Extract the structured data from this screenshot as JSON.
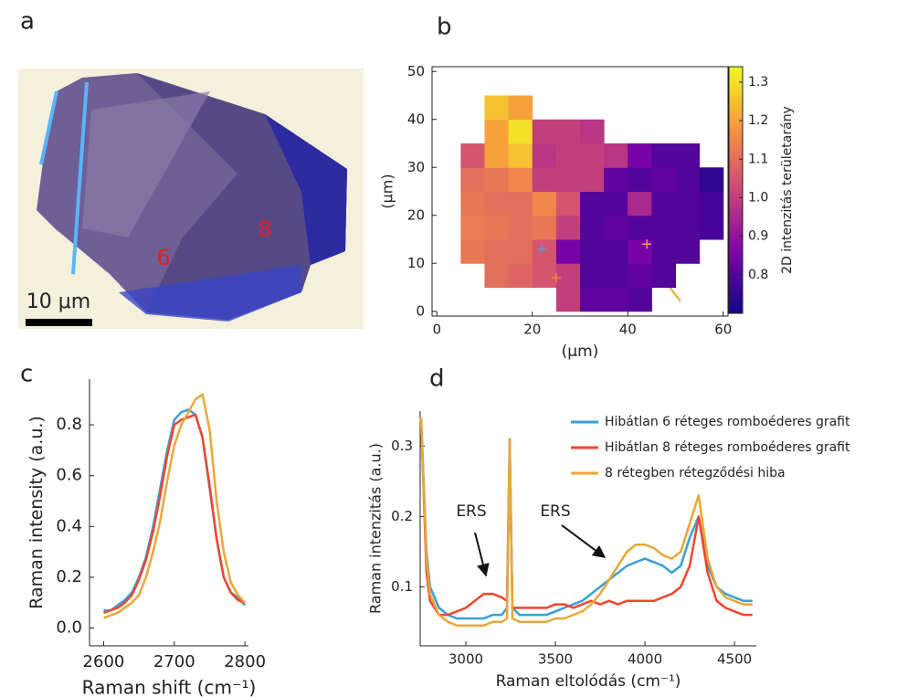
{
  "image_panel": {
    "panel_label": "a",
    "annotations": [
      "6",
      "8"
    ],
    "scale_bar": "10 μm"
  },
  "chart_data": [
    {
      "type": "heatmap",
      "panel_label": "b",
      "xlabel": "(μm)",
      "ylabel": "(μm)",
      "colorbar_label": "2D intenzitás területarány",
      "colormap": "plasma",
      "xlim": [
        -1,
        61
      ],
      "ylim": [
        -1,
        51
      ],
      "xticks": [
        0,
        20,
        40,
        60
      ],
      "yticks": [
        0,
        10,
        20,
        30,
        40,
        50
      ],
      "clim": [
        0.7,
        1.34
      ],
      "cticks": [
        0.8,
        0.9,
        {
          "value": 1.0,
          "label": "1.0"
        },
        1.1,
        1.2,
        1.3
      ],
      "x_edges": [
        0,
        5,
        10,
        15,
        20,
        25,
        30,
        35,
        40,
        45,
        50,
        55,
        60
      ],
      "y_edges": [
        0,
        5,
        10,
        15,
        20,
        25,
        30,
        35,
        40,
        45,
        50
      ],
      "z": [
        [
          null,
          null,
          null,
          null,
          null,
          1.0,
          0.82,
          0.82,
          0.8,
          null,
          null,
          null
        ],
        [
          null,
          null,
          1.1,
          1.08,
          1.05,
          1.0,
          0.8,
          0.8,
          0.82,
          0.8,
          null,
          null
        ],
        [
          null,
          1.12,
          1.1,
          1.1,
          1.05,
          0.85,
          0.8,
          0.8,
          0.85,
          0.8,
          0.8,
          null
        ],
        [
          null,
          1.13,
          1.12,
          1.1,
          1.12,
          1.0,
          0.8,
          0.82,
          0.8,
          0.8,
          0.8,
          0.78
        ],
        [
          null,
          1.12,
          1.1,
          1.1,
          1.15,
          1.05,
          0.8,
          0.8,
          0.95,
          0.8,
          0.8,
          0.78
        ],
        [
          null,
          1.1,
          1.12,
          1.15,
          1.0,
          1.0,
          1.0,
          0.82,
          0.8,
          0.82,
          0.8,
          0.75
        ],
        [
          null,
          1.05,
          1.2,
          1.25,
          0.98,
          1.0,
          1.0,
          0.98,
          0.85,
          0.8,
          0.8,
          null
        ],
        [
          null,
          null,
          1.2,
          1.3,
          1.0,
          1.0,
          0.98,
          null,
          null,
          null,
          null,
          null
        ],
        [
          null,
          null,
          1.25,
          1.2,
          null,
          null,
          null,
          null,
          null,
          null,
          null,
          null
        ],
        [
          null,
          null,
          null,
          null,
          null,
          null,
          null,
          null,
          null,
          null,
          null,
          null
        ]
      ],
      "markers": [
        {
          "x": 22,
          "y": 13,
          "color": "#6a8fd0"
        },
        {
          "x": 25,
          "y": 7,
          "color": "#f08a3a"
        },
        {
          "x": 44,
          "y": 14,
          "color": "#f0a050"
        }
      ]
    },
    {
      "type": "line",
      "panel_label": "c",
      "xlabel": "Raman shift (cm⁻¹)",
      "ylabel": "Raman intensity (a.u.)",
      "xlim": [
        2580,
        2805
      ],
      "ylim": [
        -0.07,
        0.98
      ],
      "xticks": [
        2600,
        2700,
        2800
      ],
      "yticks": [
        {
          "value": 0,
          "label": "0.0"
        },
        0.2,
        0.4,
        0.6,
        0.8
      ],
      "x": [
        2600,
        2610,
        2620,
        2630,
        2640,
        2650,
        2660,
        2670,
        2680,
        2690,
        2700,
        2710,
        2720,
        2730,
        2740,
        2750,
        2760,
        2770,
        2780,
        2790,
        2800
      ],
      "series": [
        {
          "color": "#3a9fd6",
          "values": [
            0.07,
            0.07,
            0.09,
            0.11,
            0.14,
            0.2,
            0.28,
            0.4,
            0.55,
            0.7,
            0.82,
            0.85,
            0.86,
            0.84,
            0.75,
            0.55,
            0.35,
            0.2,
            0.14,
            0.12,
            0.09
          ]
        },
        {
          "color": "#f0462d",
          "values": [
            0.06,
            0.07,
            0.08,
            0.1,
            0.13,
            0.19,
            0.27,
            0.38,
            0.52,
            0.68,
            0.8,
            0.82,
            0.83,
            0.84,
            0.75,
            0.56,
            0.35,
            0.2,
            0.14,
            0.11,
            0.1
          ]
        },
        {
          "color": "#e8a838",
          "values": [
            0.04,
            0.05,
            0.06,
            0.08,
            0.1,
            0.13,
            0.2,
            0.3,
            0.42,
            0.58,
            0.72,
            0.8,
            0.85,
            0.9,
            0.92,
            0.78,
            0.5,
            0.3,
            0.18,
            0.13,
            0.1
          ]
        }
      ]
    },
    {
      "type": "line",
      "panel_label": "d",
      "xlabel": "Raman eltolódás (cm⁻¹)",
      "ylabel": "Raman intenzitás (a.u.)",
      "xlim": [
        2745,
        4622
      ],
      "ylim": [
        0.016,
        0.35
      ],
      "xticks": [
        3000,
        3500,
        4000,
        4500
      ],
      "yticks": [
        0.1,
        0.2,
        0.3
      ],
      "annotations": [
        "ERS",
        "ERS"
      ],
      "legend": "upper right",
      "x": [
        2750,
        2780,
        2800,
        2850,
        2900,
        2950,
        3000,
        3050,
        3100,
        3150,
        3200,
        3230,
        3245,
        3260,
        3300,
        3350,
        3400,
        3450,
        3500,
        3550,
        3600,
        3650,
        3700,
        3750,
        3800,
        3850,
        3900,
        3950,
        4000,
        4050,
        4100,
        4150,
        4200,
        4250,
        4300,
        4350,
        4400,
        4450,
        4500,
        4550,
        4600
      ],
      "series": [
        {
          "name": "Hibátlan 6 réteges romboéderes grafit",
          "color": "#3a9fd6",
          "values": [
            0.34,
            0.15,
            0.1,
            0.07,
            0.06,
            0.055,
            0.055,
            0.055,
            0.055,
            0.06,
            0.06,
            0.07,
            0.31,
            0.07,
            0.06,
            0.06,
            0.06,
            0.06,
            0.065,
            0.07,
            0.075,
            0.08,
            0.09,
            0.1,
            0.11,
            0.12,
            0.13,
            0.135,
            0.14,
            0.135,
            0.13,
            0.12,
            0.13,
            0.17,
            0.2,
            0.13,
            0.1,
            0.09,
            0.085,
            0.08,
            0.08
          ]
        },
        {
          "name": "Hibátlan 8 réteges romboéderes grafit",
          "color": "#f0462d",
          "values": [
            0.34,
            0.12,
            0.08,
            0.06,
            0.06,
            0.065,
            0.07,
            0.08,
            0.09,
            0.09,
            0.085,
            0.08,
            0.3,
            0.07,
            0.07,
            0.07,
            0.07,
            0.07,
            0.075,
            0.075,
            0.07,
            0.075,
            0.08,
            0.075,
            0.08,
            0.075,
            0.08,
            0.08,
            0.08,
            0.08,
            0.085,
            0.09,
            0.1,
            0.13,
            0.2,
            0.12,
            0.08,
            0.07,
            0.065,
            0.06,
            0.06
          ]
        },
        {
          "name": "8 rétegben rétegződési hiba",
          "color": "#e8a838",
          "values": [
            0.34,
            0.14,
            0.09,
            0.06,
            0.05,
            0.045,
            0.045,
            0.045,
            0.045,
            0.05,
            0.05,
            0.055,
            0.31,
            0.055,
            0.05,
            0.05,
            0.05,
            0.05,
            0.055,
            0.055,
            0.06,
            0.065,
            0.075,
            0.09,
            0.11,
            0.13,
            0.15,
            0.16,
            0.16,
            0.155,
            0.145,
            0.14,
            0.15,
            0.19,
            0.23,
            0.14,
            0.1,
            0.085,
            0.08,
            0.075,
            0.075
          ]
        }
      ]
    }
  ]
}
